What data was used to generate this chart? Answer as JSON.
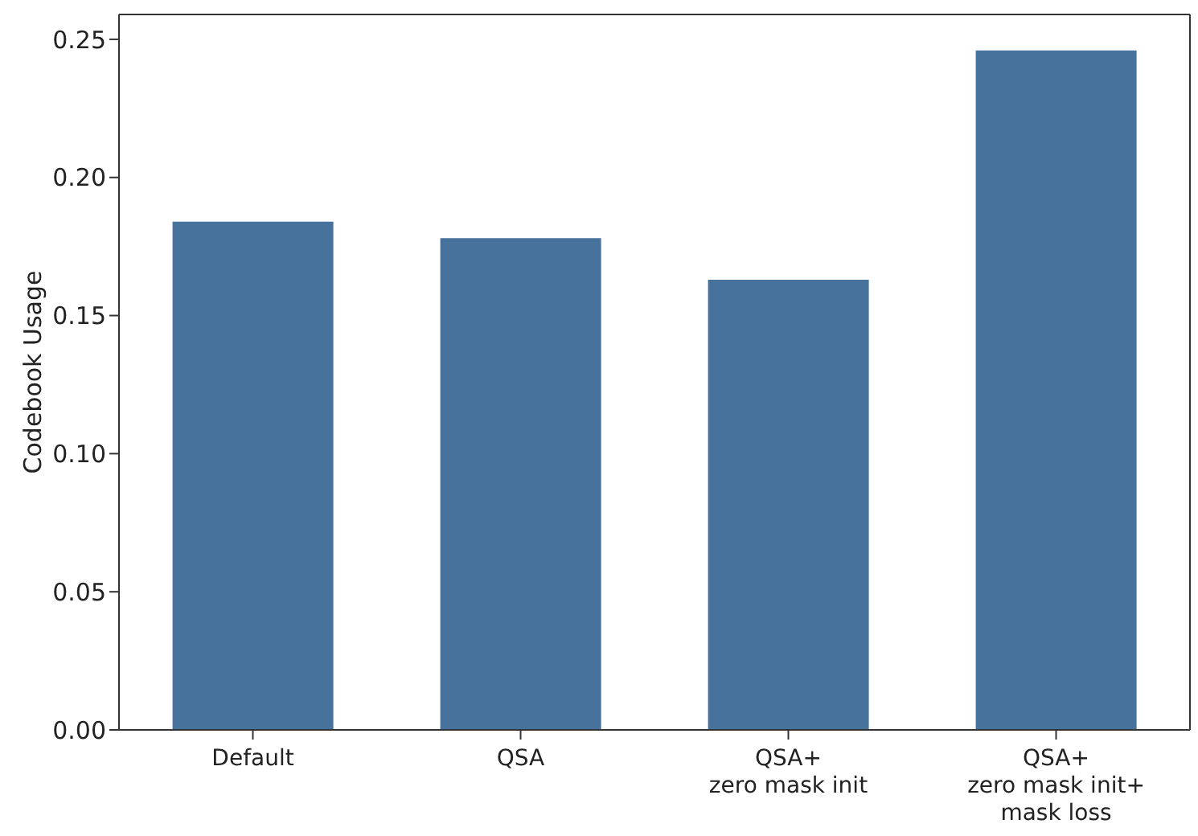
{
  "chart_data": {
    "type": "bar",
    "ylabel": "Codebook Usage",
    "categories": [
      "Default",
      "QSA",
      "QSA+\nzero mask init",
      "QSA+\nzero mask init+\nmask loss"
    ],
    "values": [
      0.184,
      0.178,
      0.163,
      0.246
    ],
    "color": "#46729c",
    "ylim": [
      0,
      0.259
    ],
    "yticks": [
      {
        "value": 0,
        "label": "0.00"
      },
      0.05,
      {
        "value": 0.1,
        "label": "0.10"
      },
      0.15,
      {
        "value": 0.2,
        "label": "0.20"
      },
      0.25
    ],
    "grid": false
  }
}
